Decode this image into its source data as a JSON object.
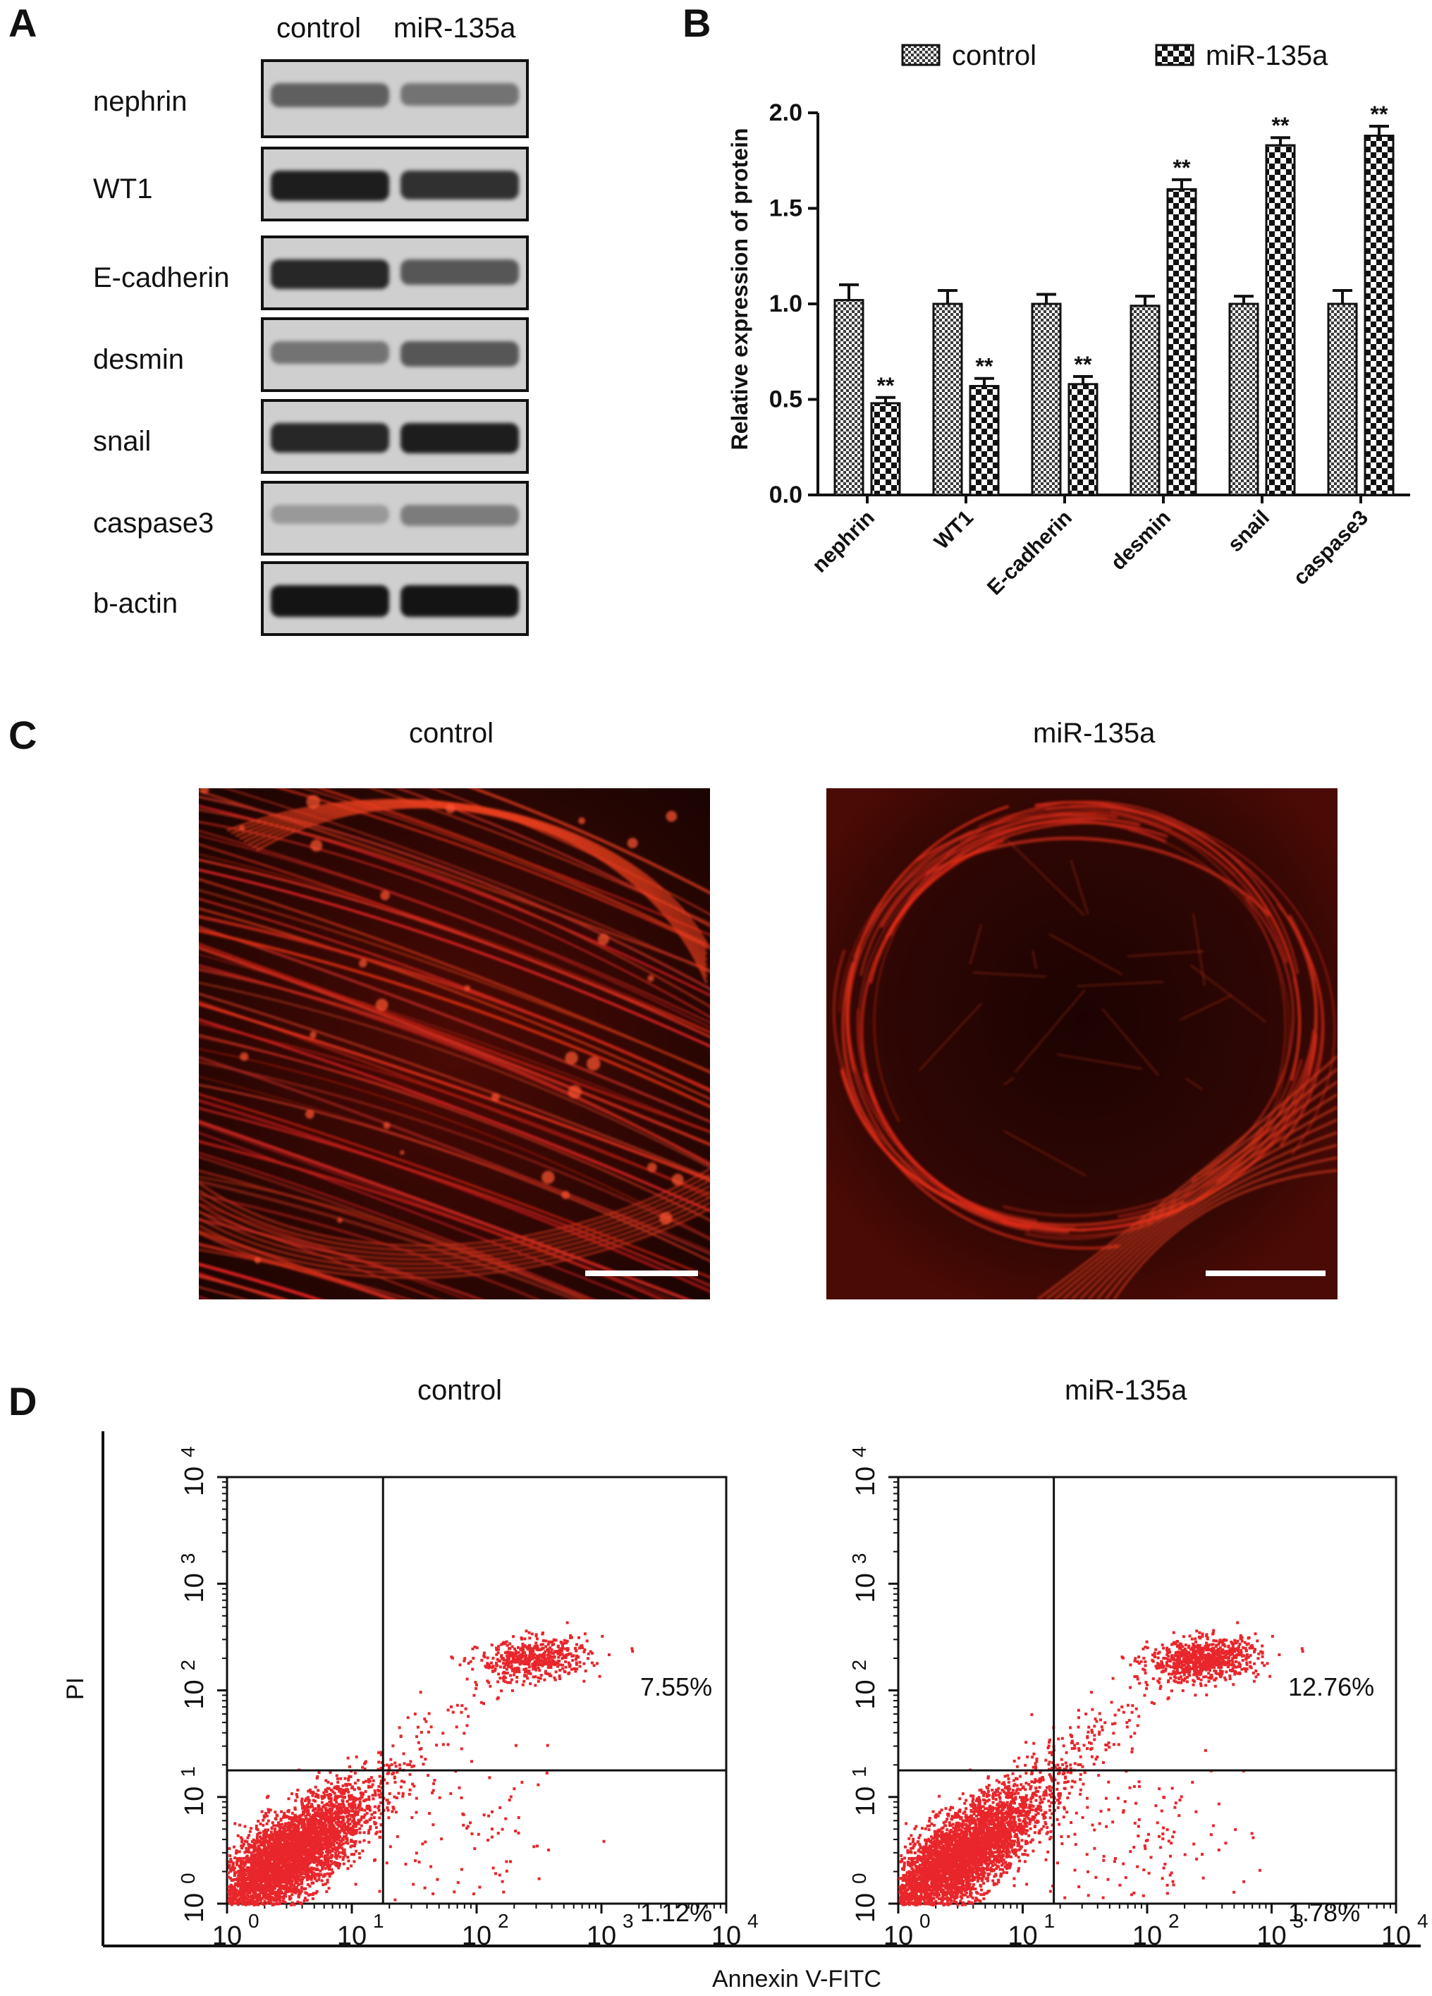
{
  "panels": {
    "a": {
      "letter": "A",
      "col_headers": [
        "control",
        "miR-135a"
      ],
      "rows": [
        "nephrin",
        "WT1",
        "E-cadherin",
        "desmin",
        "snail",
        "caspase3",
        "b-actin"
      ],
      "band_intensity": {
        "control": [
          0.55,
          0.9,
          0.85,
          0.45,
          0.85,
          0.25,
          0.95
        ],
        "mir135a": [
          0.45,
          0.8,
          0.6,
          0.6,
          0.9,
          0.4,
          0.95
        ]
      }
    },
    "b": {
      "letter": "B"
    },
    "c": {
      "letter": "C",
      "left_title": "control",
      "right_title": "miR-135a"
    },
    "d": {
      "letter": "D",
      "left_title": "control",
      "right_title": "miR-135a",
      "y_axis_label": "PI",
      "x_axis_label": "Annexin V-FITC",
      "tick_powers": [
        "0",
        "1",
        "2",
        "3",
        "4"
      ],
      "left_percentages": {
        "upper_right": "7.55%",
        "lower_right": "1.12%"
      },
      "right_percentages": {
        "upper_right": "12.76%",
        "lower_right": "1.78%"
      },
      "point_color": "#e8262b"
    }
  },
  "chart_data": {
    "type": "bar",
    "categories": [
      "nephrin",
      "WT1",
      "E-cadherin",
      "desmin",
      "snail",
      "caspase3"
    ],
    "series": [
      {
        "name": "control",
        "values": [
          1.02,
          1.0,
          1.0,
          0.99,
          1.0,
          1.0
        ],
        "errors": [
          0.08,
          0.07,
          0.05,
          0.05,
          0.04,
          0.07
        ],
        "pattern": "fine-check"
      },
      {
        "name": "miR-135a",
        "values": [
          0.48,
          0.57,
          0.58,
          1.6,
          1.83,
          1.88
        ],
        "errors": [
          0.03,
          0.04,
          0.04,
          0.05,
          0.04,
          0.05
        ],
        "pattern": "coarse-check",
        "annotations": [
          "**",
          "**",
          "**",
          "**",
          "**",
          "**"
        ]
      }
    ],
    "title": "",
    "xlabel": "",
    "ylabel": "Relative expression of protein",
    "ylim": [
      0,
      2.0
    ],
    "yticks": [
      "0.0",
      "0.5",
      "1.0",
      "1.5",
      "2.0"
    ],
    "legend": "top",
    "grid": false
  }
}
